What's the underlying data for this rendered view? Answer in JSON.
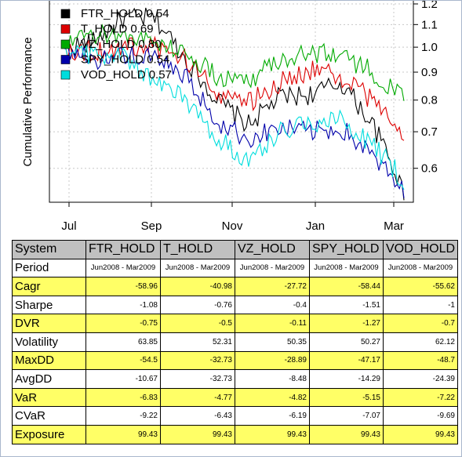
{
  "chart_data": {
    "type": "line",
    "ylabel": "Cumulative Performance",
    "y_scale": "log",
    "ylim": [
      0.52,
      1.22
    ],
    "y_ticks": [
      0.6,
      0.7,
      0.8,
      0.9,
      1.0,
      1.1,
      1.2
    ],
    "y_tick_labels": [
      "0.6",
      "0.7",
      "0.8",
      "0.9",
      "1.0",
      "1.1",
      "1.2"
    ],
    "y_axis_side": "right",
    "x_tick_labels": [
      "Jul",
      "Sep",
      "Nov",
      "Jan",
      "Mar"
    ],
    "grid": true,
    "legend_position": "top-left",
    "legend": [
      "FTR_HOLD 0.54",
      "T_HOLD 0.69",
      "VZ_HOLD 0.80",
      "SPY_HOLD 0.54",
      "VOD_HOLD 0.57"
    ],
    "series": [
      {
        "name": "FTR_HOLD",
        "color": "#000000",
        "values": [
          {
            "x": "Jun",
            "y": 1.0
          },
          {
            "x": "Jul",
            "y": 1.02
          },
          {
            "x": "Aug",
            "y": 1.13
          },
          {
            "x": "Sep",
            "y": 1.13
          },
          {
            "x": "Sep-mid",
            "y": 0.95
          },
          {
            "x": "Oct",
            "y": 0.8
          },
          {
            "x": "Oct-mid",
            "y": 0.72
          },
          {
            "x": "Nov",
            "y": 0.81
          },
          {
            "x": "Dec",
            "y": 0.82
          },
          {
            "x": "Jan",
            "y": 0.86
          },
          {
            "x": "Feb",
            "y": 0.72
          },
          {
            "x": "Mar",
            "y": 0.54
          }
        ]
      },
      {
        "name": "T_HOLD",
        "color": "#dd0000",
        "values": [
          {
            "x": "Jun",
            "y": 1.0
          },
          {
            "x": "Jul",
            "y": 0.98
          },
          {
            "x": "Aug",
            "y": 1.0
          },
          {
            "x": "Sep",
            "y": 1.0
          },
          {
            "x": "Sep-mid",
            "y": 0.95
          },
          {
            "x": "Oct",
            "y": 0.83
          },
          {
            "x": "Oct-mid",
            "y": 0.79
          },
          {
            "x": "Nov",
            "y": 0.86
          },
          {
            "x": "Dec",
            "y": 0.91
          },
          {
            "x": "Jan",
            "y": 0.88
          },
          {
            "x": "Feb",
            "y": 0.8
          },
          {
            "x": "Mar",
            "y": 0.69
          }
        ]
      },
      {
        "name": "VZ_HOLD",
        "color": "#00aa00",
        "values": [
          {
            "x": "Jun",
            "y": 1.0
          },
          {
            "x": "Jul",
            "y": 1.05
          },
          {
            "x": "Aug",
            "y": 1.06
          },
          {
            "x": "Sep",
            "y": 1.02
          },
          {
            "x": "Sep-mid",
            "y": 0.98
          },
          {
            "x": "Oct",
            "y": 0.88
          },
          {
            "x": "Oct-mid",
            "y": 0.87
          },
          {
            "x": "Nov",
            "y": 0.95
          },
          {
            "x": "Dec",
            "y": 0.98
          },
          {
            "x": "Jan",
            "y": 0.97
          },
          {
            "x": "Feb",
            "y": 0.9
          },
          {
            "x": "Mar",
            "y": 0.8
          }
        ]
      },
      {
        "name": "SPY_HOLD",
        "color": "#0000aa",
        "values": [
          {
            "x": "Jun",
            "y": 1.0
          },
          {
            "x": "Jul",
            "y": 0.95
          },
          {
            "x": "Aug",
            "y": 0.97
          },
          {
            "x": "Sep",
            "y": 0.95
          },
          {
            "x": "Sep-mid",
            "y": 0.88
          },
          {
            "x": "Oct",
            "y": 0.73
          },
          {
            "x": "Oct-mid",
            "y": 0.68
          },
          {
            "x": "Nov",
            "y": 0.71
          },
          {
            "x": "Dec",
            "y": 0.7
          },
          {
            "x": "Jan",
            "y": 0.71
          },
          {
            "x": "Feb",
            "y": 0.63
          },
          {
            "x": "Mar",
            "y": 0.54
          }
        ]
      },
      {
        "name": "VOD_HOLD",
        "color": "#00dddd",
        "values": [
          {
            "x": "Jun",
            "y": 1.0
          },
          {
            "x": "Jul",
            "y": 0.97
          },
          {
            "x": "Aug",
            "y": 0.96
          },
          {
            "x": "Sep",
            "y": 0.87
          },
          {
            "x": "Sep-mid",
            "y": 0.8
          },
          {
            "x": "Oct",
            "y": 0.68
          },
          {
            "x": "Oct-mid",
            "y": 0.62
          },
          {
            "x": "Nov",
            "y": 0.7
          },
          {
            "x": "Dec",
            "y": 0.73
          },
          {
            "x": "Jan",
            "y": 0.74
          },
          {
            "x": "Feb",
            "y": 0.66
          },
          {
            "x": "Mar",
            "y": 0.57
          }
        ]
      }
    ]
  },
  "table": {
    "header": [
      "System",
      "FTR_HOLD",
      "T_HOLD",
      "VZ_HOLD",
      "SPY_HOLD",
      "VOD_HOLD"
    ],
    "rows": [
      {
        "label": "Period",
        "type": "period",
        "highlight": false,
        "values": [
          "Jun2008 - Mar2009",
          "Jun2008 - Mar2009",
          "Jun2008 - Mar2009",
          "Jun2008 - Mar2009",
          "Jun2008 - Mar2009"
        ]
      },
      {
        "label": "Cagr",
        "highlight": true,
        "values": [
          "-58.96",
          "-40.98",
          "-27.72",
          "-58.44",
          "-55.62"
        ]
      },
      {
        "label": "Sharpe",
        "highlight": false,
        "values": [
          "-1.08",
          "-0.76",
          "-0.4",
          "-1.51",
          "-1"
        ]
      },
      {
        "label": "DVR",
        "highlight": true,
        "values": [
          "-0.75",
          "-0.5",
          "-0.11",
          "-1.27",
          "-0.7"
        ]
      },
      {
        "label": "Volatility",
        "highlight": false,
        "values": [
          "63.85",
          "52.31",
          "50.35",
          "50.27",
          "62.12"
        ]
      },
      {
        "label": "MaxDD",
        "highlight": true,
        "values": [
          "-54.5",
          "-32.73",
          "-28.89",
          "-47.17",
          "-48.7"
        ]
      },
      {
        "label": "AvgDD",
        "highlight": false,
        "values": [
          "-10.67",
          "-32.73",
          "-8.48",
          "-14.29",
          "-24.39"
        ]
      },
      {
        "label": "VaR",
        "highlight": true,
        "values": [
          "-6.83",
          "-4.77",
          "-4.82",
          "-5.15",
          "-7.22"
        ]
      },
      {
        "label": "CVaR",
        "highlight": false,
        "values": [
          "-9.22",
          "-6.43",
          "-6.19",
          "-7.07",
          "-9.69"
        ]
      },
      {
        "label": "Exposure",
        "highlight": true,
        "values": [
          "99.43",
          "99.43",
          "99.43",
          "99.43",
          "99.43"
        ]
      }
    ]
  },
  "colors": {
    "highlight": "#ffff66",
    "header": "#c0c0c0"
  }
}
